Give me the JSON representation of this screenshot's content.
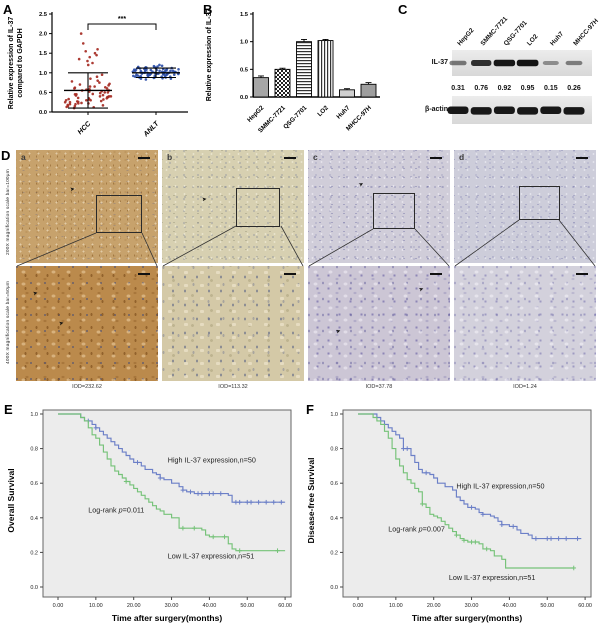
{
  "panels": {
    "A": {
      "label": "A"
    },
    "B": {
      "label": "B"
    },
    "C": {
      "label": "C",
      "lanes": [
        "HepG2",
        "SMMC-7721",
        "QSG-7701",
        "LO2",
        "Huh7",
        "MHCC-97H"
      ],
      "rows": [
        {
          "name": "IL-37"
        },
        {
          "name": "β-actin"
        }
      ],
      "values": [
        "0.31",
        "0.76",
        "0.92",
        "0.95",
        "0.15",
        "0.26"
      ],
      "band_intensities": [
        0.31,
        0.76,
        0.92,
        0.95,
        0.15,
        0.26
      ]
    },
    "D": {
      "label": "D",
      "row_labels": [
        "200X magnification  scale bar=100μm",
        "400X magnification  scale bar=50μm"
      ],
      "columns": [
        {
          "letter": "a",
          "iod": "IOD=232.62"
        },
        {
          "letter": "b",
          "iod": "IOD=113.32"
        },
        {
          "letter": "c",
          "iod": "IOD=37.78"
        },
        {
          "letter": "d",
          "iod": "IOD=1.24"
        }
      ]
    },
    "E": {
      "label": "E"
    },
    "F": {
      "label": "F"
    }
  },
  "chart_data": [
    {
      "id": "A",
      "type": "scatter",
      "ylabel_lines": [
        "Relative expression of IL-37",
        "compared to GAPDH"
      ],
      "ylim": [
        0,
        2.5
      ],
      "yticks": [
        "0.0",
        "0.5",
        "1.0",
        "1.5",
        "2.0",
        "2.5"
      ],
      "significance": "***",
      "groups": [
        {
          "name": "HCC",
          "color": "#a52a22",
          "mean": 0.55,
          "err_low": 0.1,
          "err_high": 1.0,
          "points": [
            0.1,
            0.12,
            0.13,
            0.15,
            0.15,
            0.17,
            0.18,
            0.2,
            0.2,
            0.22,
            0.22,
            0.23,
            0.25,
            0.25,
            0.26,
            0.27,
            0.28,
            0.3,
            0.3,
            0.3,
            0.32,
            0.32,
            0.33,
            0.35,
            0.35,
            0.36,
            0.38,
            0.38,
            0.4,
            0.4,
            0.4,
            0.42,
            0.43,
            0.45,
            0.45,
            0.46,
            0.48,
            0.5,
            0.5,
            0.52,
            0.53,
            0.55,
            0.55,
            0.57,
            0.58,
            0.6,
            0.6,
            0.62,
            0.63,
            0.65,
            0.65,
            0.68,
            0.7,
            0.72,
            0.75,
            0.78,
            0.8,
            0.85,
            0.9,
            0.95,
            1.2,
            1.25,
            1.3,
            1.35,
            1.4,
            1.45,
            1.5,
            1.55,
            1.6,
            1.75,
            2.0
          ]
        },
        {
          "name": "ANLT",
          "color": "#2b4ea8",
          "mean": 1.0,
          "err_low": 0.88,
          "err_high": 1.12,
          "points": [
            0.83,
            0.85,
            0.85,
            0.86,
            0.87,
            0.88,
            0.88,
            0.88,
            0.9,
            0.9,
            0.9,
            0.9,
            0.91,
            0.92,
            0.92,
            0.92,
            0.93,
            0.93,
            0.93,
            0.94,
            0.95,
            0.95,
            0.95,
            0.95,
            0.95,
            0.96,
            0.96,
            0.97,
            0.97,
            0.97,
            0.98,
            0.98,
            0.98,
            0.98,
            0.99,
            1.0,
            1.0,
            1.0,
            1.0,
            1.0,
            1.0,
            1.01,
            1.02,
            1.02,
            1.02,
            1.02,
            1.03,
            1.03,
            1.03,
            1.04,
            1.05,
            1.05,
            1.05,
            1.05,
            1.05,
            1.06,
            1.06,
            1.07,
            1.07,
            1.08,
            1.08,
            1.08,
            1.09,
            1.1,
            1.1,
            1.1,
            1.1,
            1.11,
            1.12,
            1.12,
            1.12,
            1.13,
            1.13,
            1.14,
            1.15,
            1.15,
            1.16,
            1.17,
            1.18,
            1.2
          ]
        }
      ]
    },
    {
      "id": "B",
      "type": "bar",
      "ylabel": "Relative expression of IL-37",
      "ylim": [
        0,
        1.5
      ],
      "yticks": [
        "0.0",
        "0.5",
        "1.0",
        "1.5"
      ],
      "categories": [
        "HepG2",
        "SMMC-7721",
        "QSG-7701",
        "LO2",
        "Huh7",
        "MHCC-97H"
      ],
      "values": [
        0.35,
        0.5,
        1.0,
        1.02,
        0.13,
        0.23
      ],
      "errors": [
        0.03,
        0.02,
        0.04,
        0.02,
        0.02,
        0.03
      ],
      "patterns": [
        "solid:#a6a6a6",
        "checker",
        "hlines",
        "vlines",
        "solid:#cfcfcf",
        "solid:#9e9e9e"
      ]
    },
    {
      "id": "E",
      "type": "km",
      "ylabel": "Overall Survival",
      "xlabel": "Time after surgery(months)",
      "xlim": [
        0,
        60
      ],
      "ylim": [
        0,
        1.0
      ],
      "xticks": [
        "0.00",
        "10.00",
        "20.00",
        "30.00",
        "40.00",
        "50.00",
        "60.00"
      ],
      "yticks": [
        "0.0",
        "0.2",
        "0.4",
        "0.6",
        "0.8",
        "1.0"
      ],
      "annotation": {
        "pre": "Log-rank ",
        "p": "p",
        "post": "=0.011",
        "x": 8,
        "y": 0.43
      },
      "series": [
        {
          "name": "High IL-37 expression,n=50",
          "color": "#6b7fc7",
          "label_x": 29,
          "label_y": 0.72,
          "steps": [
            [
              0,
              1.0
            ],
            [
              5,
              1.0
            ],
            [
              6,
              0.98
            ],
            [
              7,
              0.96
            ],
            [
              9,
              0.94
            ],
            [
              10,
              0.92
            ],
            [
              11,
              0.9
            ],
            [
              12,
              0.88
            ],
            [
              13,
              0.86
            ],
            [
              14,
              0.84
            ],
            [
              15,
              0.82
            ],
            [
              16,
              0.8
            ],
            [
              17,
              0.78
            ],
            [
              18,
              0.76
            ],
            [
              19,
              0.74
            ],
            [
              20,
              0.72
            ],
            [
              22,
              0.7
            ],
            [
              23,
              0.68
            ],
            [
              25,
              0.66
            ],
            [
              26,
              0.65
            ],
            [
              27,
              0.63
            ],
            [
              28,
              0.62
            ],
            [
              30,
              0.6
            ],
            [
              32,
              0.58
            ],
            [
              33,
              0.56
            ],
            [
              34,
              0.55
            ],
            [
              36,
              0.54
            ],
            [
              45,
              0.53
            ],
            [
              46,
              0.49
            ],
            [
              60,
              0.49
            ]
          ],
          "censors": [
            8,
            10,
            21,
            27,
            33,
            35,
            37,
            38,
            40,
            41,
            43,
            47,
            48,
            50,
            51,
            53,
            55,
            57,
            59
          ]
        },
        {
          "name": "Low IL-37 expression,n=51",
          "color": "#75c278",
          "label_x": 29,
          "label_y": 0.165,
          "steps": [
            [
              0,
              1.0
            ],
            [
              5,
              1.0
            ],
            [
              6,
              0.98
            ],
            [
              7,
              0.96
            ],
            [
              8,
              0.92
            ],
            [
              9,
              0.88
            ],
            [
              10,
              0.86
            ],
            [
              11,
              0.82
            ],
            [
              12,
              0.78
            ],
            [
              13,
              0.74
            ],
            [
              14,
              0.7
            ],
            [
              15,
              0.67
            ],
            [
              16,
              0.65
            ],
            [
              17,
              0.63
            ],
            [
              18,
              0.61
            ],
            [
              19,
              0.59
            ],
            [
              20,
              0.57
            ],
            [
              21,
              0.55
            ],
            [
              22,
              0.53
            ],
            [
              23,
              0.51
            ],
            [
              24,
              0.49
            ],
            [
              25,
              0.47
            ],
            [
              26,
              0.45
            ],
            [
              27,
              0.44
            ],
            [
              28,
              0.42
            ],
            [
              30,
              0.4
            ],
            [
              32,
              0.34
            ],
            [
              38,
              0.33
            ],
            [
              39,
              0.3
            ],
            [
              40,
              0.29
            ],
            [
              45,
              0.25
            ],
            [
              46,
              0.22
            ],
            [
              47,
              0.21
            ],
            [
              60,
              0.21
            ]
          ],
          "censors": [
            18,
            33,
            36,
            41,
            44,
            48,
            58
          ]
        }
      ]
    },
    {
      "id": "F",
      "type": "km",
      "ylabel": "Disease-free Survival",
      "xlabel": "Time after surgery(months)",
      "xlim": [
        0,
        60
      ],
      "ylim": [
        0,
        1.0
      ],
      "xticks": [
        "0.00",
        "10.00",
        "20.00",
        "30.00",
        "40.00",
        "50.00",
        "60.00"
      ],
      "yticks": [
        "0.0",
        "0.2",
        "0.4",
        "0.6",
        "0.8",
        "1.0"
      ],
      "annotation": {
        "pre": "Log-rank ",
        "p": "p",
        "post": "=0.007",
        "x": 8,
        "y": 0.32
      },
      "series": [
        {
          "name": "High IL-37 expression,n=50",
          "color": "#6b7fc7",
          "label_x": 26,
          "label_y": 0.57,
          "steps": [
            [
              0,
              1.0
            ],
            [
              4,
              1.0
            ],
            [
              5,
              0.98
            ],
            [
              6,
              0.96
            ],
            [
              7,
              0.94
            ],
            [
              8,
              0.92
            ],
            [
              9,
              0.9
            ],
            [
              10,
              0.88
            ],
            [
              11,
              0.86
            ],
            [
              12,
              0.8
            ],
            [
              14,
              0.76
            ],
            [
              15,
              0.72
            ],
            [
              16,
              0.68
            ],
            [
              17,
              0.66
            ],
            [
              19,
              0.65
            ],
            [
              20,
              0.63
            ],
            [
              21,
              0.6
            ],
            [
              23,
              0.58
            ],
            [
              25,
              0.56
            ],
            [
              26,
              0.52
            ],
            [
              27,
              0.5
            ],
            [
              28,
              0.48
            ],
            [
              29,
              0.46
            ],
            [
              31,
              0.45
            ],
            [
              32,
              0.43
            ],
            [
              33,
              0.42
            ],
            [
              35,
              0.41
            ],
            [
              36,
              0.4
            ],
            [
              37,
              0.38
            ],
            [
              38,
              0.36
            ],
            [
              40,
              0.35
            ],
            [
              42,
              0.33
            ],
            [
              43,
              0.31
            ],
            [
              45,
              0.3
            ],
            [
              46,
              0.28
            ],
            [
              59,
              0.28
            ]
          ],
          "censors": [
            12,
            13,
            18,
            30,
            33,
            38,
            41,
            47,
            50,
            51,
            53,
            55,
            58
          ]
        },
        {
          "name": "Low IL-37 expression,n=51",
          "color": "#75c278",
          "label_x": 24,
          "label_y": 0.04,
          "steps": [
            [
              0,
              1.0
            ],
            [
              3,
              1.0
            ],
            [
              4,
              0.98
            ],
            [
              5,
              0.96
            ],
            [
              6,
              0.94
            ],
            [
              7,
              0.9
            ],
            [
              8,
              0.86
            ],
            [
              9,
              0.8
            ],
            [
              10,
              0.74
            ],
            [
              11,
              0.7
            ],
            [
              12,
              0.66
            ],
            [
              13,
              0.62
            ],
            [
              14,
              0.6
            ],
            [
              15,
              0.57
            ],
            [
              16,
              0.55
            ],
            [
              17,
              0.48
            ],
            [
              18,
              0.46
            ],
            [
              19,
              0.42
            ],
            [
              20,
              0.41
            ],
            [
              21,
              0.4
            ],
            [
              22,
              0.38
            ],
            [
              23,
              0.36
            ],
            [
              24,
              0.34
            ],
            [
              25,
              0.32
            ],
            [
              26,
              0.3
            ],
            [
              27,
              0.28
            ],
            [
              28,
              0.27
            ],
            [
              29,
              0.26
            ],
            [
              32,
              0.25
            ],
            [
              33,
              0.22
            ],
            [
              35,
              0.21
            ],
            [
              36,
              0.18
            ],
            [
              38,
              0.16
            ],
            [
              39,
              0.11
            ],
            [
              57,
              0.11
            ]
          ],
          "censors": [
            17,
            26,
            28,
            30,
            31,
            34,
            57
          ]
        }
      ]
    }
  ]
}
